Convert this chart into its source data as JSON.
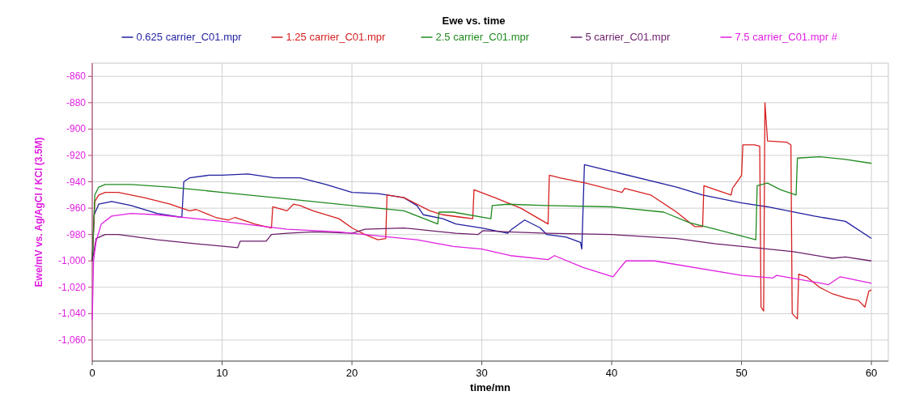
{
  "chart_data": {
    "type": "line",
    "title": "Ewe vs. time",
    "xlabel": "time/mn",
    "ylabel": "Ewe/mV vs. Ag/AgCl / KCl (3.5M)",
    "xlim": [
      0,
      61.3
    ],
    "ylim": [
      -1076,
      -850
    ],
    "xticks": [
      0,
      10,
      20,
      30,
      40,
      50,
      60
    ],
    "yticks": [
      -860,
      -880,
      -900,
      -920,
      -940,
      -960,
      -980,
      {
        "value": -1000,
        "label": "-1,000"
      },
      {
        "value": -1020,
        "label": "-1,020"
      },
      {
        "value": -1040,
        "label": "-1,040"
      },
      {
        "value": -1060,
        "label": "-1,060"
      }
    ],
    "grid": true,
    "legend": "top",
    "line_style": "solid",
    "marker": "none",
    "series": [
      {
        "name": "0.625 carrier_C01.mpr",
        "color": "#1f1fa0",
        "x": [
          0,
          0.15,
          0.5,
          1.5,
          3,
          5,
          6.9,
          7.05,
          7.5,
          9,
          10,
          12,
          14,
          16,
          18,
          20,
          22,
          24,
          25,
          25.5,
          27,
          28,
          30,
          31,
          32,
          32.3,
          33.3,
          34.5,
          35,
          36.5,
          37.6,
          37.7,
          37.9,
          40,
          45,
          47,
          50,
          52,
          55.6,
          58,
          60
        ],
        "values": [
          -1000,
          -965,
          -957,
          -955,
          -958,
          -964,
          -967,
          -940,
          -937,
          -935,
          -935,
          -934,
          -937,
          -937,
          -942,
          -948,
          -949,
          -952,
          -958,
          -965,
          -968,
          -972,
          -975,
          -977,
          -979,
          -976,
          -969,
          -975,
          -980,
          -982,
          -986,
          -991,
          -927,
          -932,
          -944,
          -950,
          -956,
          -959,
          -966,
          -970,
          -983
        ]
      },
      {
        "name": "1.25 carrier_C01.mpr",
        "color": "#d62020",
        "x": [
          0,
          0.2,
          0.5,
          1,
          2,
          4,
          6,
          6.9,
          7.5,
          8,
          9.5,
          10.5,
          11,
          12.5,
          13.8,
          13.9,
          15,
          15.5,
          16,
          17,
          19,
          20,
          21,
          22,
          22.6,
          22.7,
          24,
          26,
          27,
          28.5,
          29.3,
          29.4,
          31,
          33,
          35.1,
          35.2,
          36,
          38,
          40.8,
          41,
          43,
          45,
          46.4,
          47,
          47.1,
          48,
          49.2,
          49.3,
          49.8,
          50,
          50.1,
          51,
          51.4,
          51.5,
          51.7,
          51.8,
          52,
          53.5,
          53.8,
          53.9,
          54.3,
          54.4,
          55,
          56,
          57,
          58,
          59,
          59.5,
          59.8,
          60
        ],
        "values": [
          -1000,
          -955,
          -950,
          -948,
          -948,
          -952,
          -957,
          -960,
          -962,
          -961,
          -967,
          -969,
          -967,
          -972,
          -975,
          -959,
          -962,
          -957,
          -958,
          -962,
          -968,
          -975,
          -980,
          -984,
          -983,
          -950,
          -952,
          -962,
          -965,
          -967,
          -968,
          -946,
          -952,
          -960,
          -972,
          -935,
          -937,
          -941,
          -948,
          -945,
          -950,
          -963,
          -974,
          -974,
          -943,
          -946,
          -950,
          -945,
          -938,
          -935,
          -912,
          -912,
          -913,
          -1035,
          -1038,
          -880,
          -909,
          -910,
          -912,
          -1040,
          -1044,
          -1010,
          -1012,
          -1020,
          -1025,
          -1028,
          -1030,
          -1035,
          -1023,
          -1022
        ]
      },
      {
        "name": "2.5 carrier_C01.mpr",
        "color": "#1f8a1f",
        "x": [
          0,
          0.2,
          0.5,
          1,
          3,
          6,
          10,
          15,
          20,
          24,
          26.6,
          26.7,
          27.8,
          30.7,
          30.8,
          32,
          35,
          40,
          44,
          46,
          48,
          51.1,
          51.2,
          52,
          53,
          54.2,
          54.3,
          56,
          58,
          60
        ],
        "values": [
          -1000,
          -950,
          -944,
          -942,
          -942,
          -944,
          -948,
          -953,
          -958,
          -962,
          -972,
          -963,
          -963,
          -968,
          -958,
          -957,
          -958,
          -959,
          -963,
          -971,
          -976,
          -984,
          -943,
          -941,
          -946,
          -950,
          -922,
          -921,
          -923,
          -926
        ]
      },
      {
        "name": "5 carrier_C01.mpr",
        "color": "#6b1f6b",
        "x": [
          0,
          0.3,
          1,
          2,
          5,
          8,
          11.2,
          11.4,
          13.4,
          13.8,
          15,
          17,
          20,
          21,
          24,
          26,
          28,
          29.7,
          30.1,
          32,
          35,
          40,
          45,
          48,
          51,
          54,
          57,
          58,
          60
        ],
        "values": [
          -1000,
          -983,
          -980,
          -980,
          -984,
          -987,
          -990,
          -985,
          -985,
          -980,
          -979,
          -978,
          -979,
          -976,
          -975,
          -977,
          -979,
          -980,
          -977,
          -978,
          -979,
          -980,
          -983,
          -987,
          -990,
          -993,
          -998,
          -997,
          -1000
        ]
      },
      {
        "name": "7.5 carrier_C01.mpr #",
        "color": "#e020e0",
        "x": [
          0,
          0.1,
          0.3,
          0.7,
          1.5,
          3,
          5,
          8,
          10,
          15,
          19,
          22,
          25,
          27.8,
          30,
          32.2,
          35.1,
          35.6,
          37.8,
          40.1,
          41.1,
          43.3,
          50,
          52.4,
          52.7,
          56.7,
          57.6,
          60
        ],
        "values": [
          -1045,
          -1000,
          -985,
          -972,
          -966,
          -964,
          -965,
          -968,
          -970,
          -976,
          -978,
          -981,
          -984,
          -989,
          -991,
          -996,
          -999,
          -996,
          -1005,
          -1012,
          -1000,
          -1000,
          -1011,
          -1013,
          -1011,
          -1018,
          -1012,
          -1017
        ]
      }
    ]
  }
}
